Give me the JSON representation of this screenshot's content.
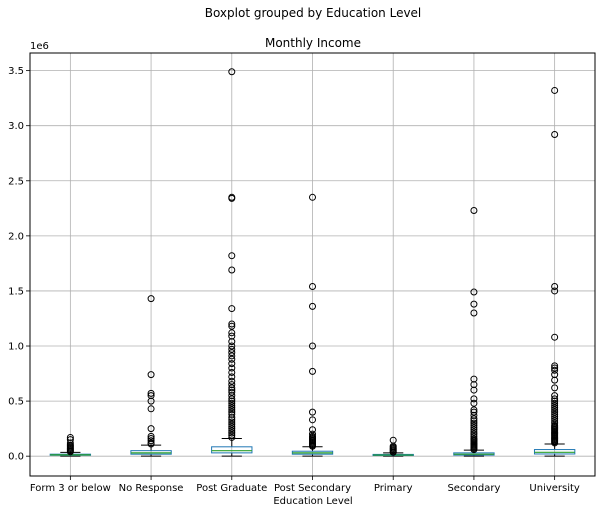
{
  "chart_data": {
    "type": "boxplot",
    "suptitle": "Boxplot grouped by Education Level",
    "title": "Monthly Income",
    "xlabel": "Education Level",
    "ylabel": "",
    "y_offset_label": "1e6",
    "ylim": [
      -0.18,
      3.66
    ],
    "yticks": [
      0.0,
      0.5,
      1.0,
      1.5,
      2.0,
      2.5,
      3.0,
      3.5
    ],
    "ytick_labels": [
      "0.0",
      "0.5",
      "1.0",
      "1.5",
      "2.0",
      "2.5",
      "3.0",
      "3.5"
    ],
    "grid": true,
    "colors": {
      "box": "#1f77b4",
      "median": "#2ca02c",
      "grid": "#b0b0b0"
    },
    "categories": [
      "Form 3 or below",
      "No Response",
      "Post Graduate",
      "Post Secondary",
      "Primary",
      "Secondary",
      "University"
    ],
    "boxes": [
      {
        "whislo": 0.0,
        "q1": 0.008,
        "med": 0.012,
        "q3": 0.018,
        "whishi": 0.035,
        "fliers": [
          0.04,
          0.05,
          0.06,
          0.07,
          0.08,
          0.09,
          0.1,
          0.12,
          0.15,
          0.17
        ]
      },
      {
        "whislo": 0.0,
        "q1": 0.018,
        "med": 0.03,
        "q3": 0.05,
        "whishi": 0.1,
        "fliers": [
          0.11,
          0.12,
          0.14,
          0.16,
          0.18,
          0.25,
          0.43,
          0.5,
          0.55,
          0.57,
          0.74,
          1.43
        ]
      },
      {
        "whislo": 0.0,
        "q1": 0.03,
        "med": 0.05,
        "q3": 0.085,
        "whishi": 0.16,
        "fliers": [
          0.17,
          0.19,
          0.21,
          0.23,
          0.25,
          0.27,
          0.29,
          0.31,
          0.33,
          0.35,
          0.38,
          0.4,
          0.42,
          0.44,
          0.46,
          0.48,
          0.5,
          0.52,
          0.55,
          0.58,
          0.6,
          0.62,
          0.65,
          0.68,
          0.72,
          0.76,
          0.8,
          0.84,
          0.88,
          0.91,
          0.94,
          0.97,
          1.0,
          1.04,
          1.09,
          1.12,
          1.18,
          1.2,
          1.34,
          1.69,
          1.82,
          2.34,
          2.35,
          3.49
        ]
      },
      {
        "whislo": 0.0,
        "q1": 0.018,
        "med": 0.03,
        "q3": 0.045,
        "whishi": 0.085,
        "fliers": [
          0.09,
          0.1,
          0.11,
          0.12,
          0.13,
          0.14,
          0.15,
          0.16,
          0.17,
          0.18,
          0.2,
          0.24,
          0.33,
          0.4,
          0.77,
          1.0,
          1.36,
          1.54,
          2.35
        ]
      },
      {
        "whislo": 0.0,
        "q1": 0.006,
        "med": 0.01,
        "q3": 0.016,
        "whishi": 0.03,
        "fliers": [
          0.035,
          0.04,
          0.05,
          0.06,
          0.07,
          0.08,
          0.09,
          0.145
        ]
      },
      {
        "whislo": 0.0,
        "q1": 0.01,
        "med": 0.018,
        "q3": 0.03,
        "whishi": 0.055,
        "fliers": [
          0.06,
          0.07,
          0.08,
          0.09,
          0.1,
          0.11,
          0.12,
          0.13,
          0.14,
          0.15,
          0.16,
          0.18,
          0.2,
          0.22,
          0.24,
          0.26,
          0.28,
          0.3,
          0.32,
          0.34,
          0.37,
          0.4,
          0.42,
          0.48,
          0.52,
          0.6,
          0.65,
          0.7,
          1.3,
          1.38,
          1.49,
          2.23
        ]
      },
      {
        "whislo": 0.0,
        "q1": 0.02,
        "med": 0.035,
        "q3": 0.06,
        "whishi": 0.11,
        "fliers": [
          0.12,
          0.13,
          0.14,
          0.15,
          0.16,
          0.17,
          0.18,
          0.19,
          0.2,
          0.21,
          0.22,
          0.23,
          0.24,
          0.25,
          0.26,
          0.27,
          0.28,
          0.3,
          0.32,
          0.34,
          0.36,
          0.38,
          0.4,
          0.42,
          0.44,
          0.46,
          0.48,
          0.5,
          0.52,
          0.55,
          0.62,
          0.69,
          0.74,
          0.78,
          0.8,
          0.82,
          1.08,
          1.5,
          1.54,
          2.92,
          3.32
        ]
      }
    ]
  }
}
